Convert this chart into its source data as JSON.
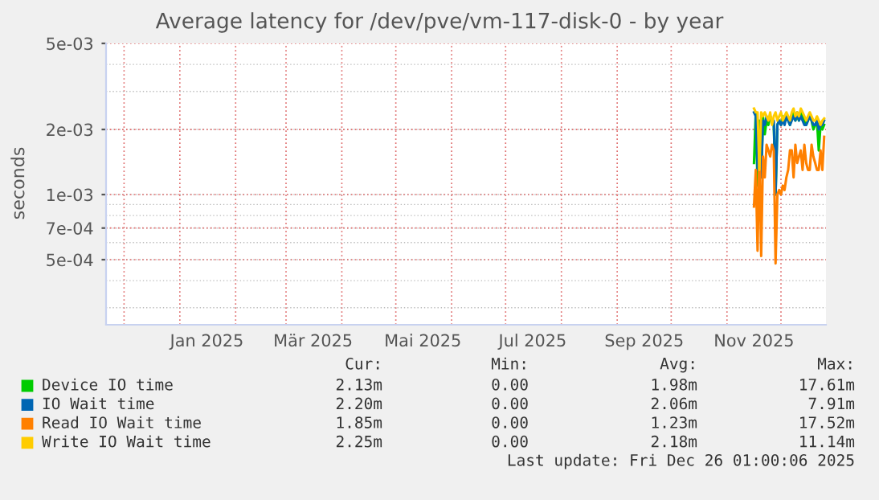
{
  "chart_data": {
    "type": "line",
    "title": "Average latency for /dev/pve/vm-117-disk-0 - by year",
    "ylabel": "seconds",
    "x": [
      "2025-11-16",
      "2025-11-17",
      "2025-11-18",
      "2025-11-19",
      "2025-11-20",
      "2025-11-21",
      "2025-11-22",
      "2025-11-23",
      "2025-11-24",
      "2025-11-25",
      "2025-11-26",
      "2025-11-27",
      "2025-11-28",
      "2025-11-29",
      "2025-11-30",
      "2025-12-01",
      "2025-12-02",
      "2025-12-03",
      "2025-12-04",
      "2025-12-05",
      "2025-12-06",
      "2025-12-07",
      "2025-12-08",
      "2025-12-09",
      "2025-12-10",
      "2025-12-11",
      "2025-12-12",
      "2025-12-13",
      "2025-12-14",
      "2025-12-15",
      "2025-12-16",
      "2025-12-17",
      "2025-12-18",
      "2025-12-19",
      "2025-12-20",
      "2025-12-21",
      "2025-12-22",
      "2025-12-23",
      "2025-12-24",
      "2025-12-25"
    ],
    "series": [
      {
        "name": "Device IO time",
        "color": "#00cc00",
        "values": [
          0.0014,
          0.0024,
          0.0011,
          0.0022,
          0.0012,
          0.0023,
          0.0019,
          0.0022,
          0.0021,
          0.0023,
          0.0022,
          0.0021,
          0.001,
          0.0021,
          0.0022,
          0.0021,
          0.0023,
          0.0022,
          0.0023,
          0.0022,
          0.0021,
          0.0023,
          0.0024,
          0.0022,
          0.0023,
          0.0022,
          0.0024,
          0.0023,
          0.0022,
          0.0021,
          0.0022,
          0.0023,
          0.0022,
          0.002,
          0.0021,
          0.0022,
          0.0016,
          0.0021,
          0.002,
          0.0021
        ]
      },
      {
        "name": "IO Wait time",
        "color": "#0066b3",
        "values": [
          0.0024,
          0.0023,
          0.0013,
          0.002,
          0.0012,
          0.0022,
          0.0021,
          0.0023,
          0.0022,
          0.0023,
          0.0022,
          0.0022,
          0.001,
          0.0021,
          0.0022,
          0.0021,
          0.0022,
          0.0021,
          0.0023,
          0.0022,
          0.0021,
          0.0022,
          0.0023,
          0.0022,
          0.0024,
          0.0022,
          0.0023,
          0.0022,
          0.0021,
          0.0021,
          0.0022,
          0.0023,
          0.0022,
          0.0021,
          0.0021,
          0.0022,
          0.002,
          0.0021,
          0.0021,
          0.0022
        ]
      },
      {
        "name": "Read IO Wait time",
        "color": "#ff8000",
        "values": [
          0.00088,
          0.0013,
          0.00055,
          0.0016,
          0.00052,
          0.0015,
          0.0012,
          0.0017,
          0.0016,
          0.0015,
          0.0017,
          0.0016,
          0.00048,
          0.001,
          0.00105,
          0.001,
          0.0011,
          0.00105,
          0.0012,
          0.0013,
          0.0016,
          0.0016,
          0.0012,
          0.0017,
          0.0014,
          0.0015,
          0.0016,
          0.0013,
          0.0017,
          0.0014,
          0.0013,
          0.0013,
          0.0017,
          0.0015,
          0.0014,
          0.0013,
          0.0013,
          0.0016,
          0.0013,
          0.00185
        ]
      },
      {
        "name": "Write IO Wait time",
        "color": "#ffcc00",
        "values": [
          0.0025,
          0.0024,
          0.0024,
          0.0013,
          0.0024,
          0.0023,
          0.0024,
          0.0023,
          0.0022,
          0.0024,
          0.0021,
          0.0023,
          0.0024,
          0.0022,
          0.0023,
          0.0024,
          0.0022,
          0.0023,
          0.0024,
          0.0023,
          0.0022,
          0.0024,
          0.0025,
          0.0023,
          0.0024,
          0.0023,
          0.0025,
          0.0024,
          0.0023,
          0.0022,
          0.0023,
          0.0024,
          0.0023,
          0.0022,
          0.0022,
          0.0023,
          0.0022,
          0.0021,
          0.0022,
          0.00225
        ]
      }
    ],
    "xlim": [
      "2024-11-21",
      "2025-12-26"
    ],
    "xticks": [
      {
        "value": "2024-12-01",
        "label": null
      },
      {
        "value": "2025-01-01",
        "label": null
      },
      {
        "value": "2025-01-16",
        "label": "Jan 2025"
      },
      {
        "value": "2025-02-01",
        "label": null
      },
      {
        "value": "2025-03-01",
        "label": null
      },
      {
        "value": "2025-03-16",
        "label": "Mär 2025"
      },
      {
        "value": "2025-04-01",
        "label": null
      },
      {
        "value": "2025-05-01",
        "label": null
      },
      {
        "value": "2025-05-16",
        "label": "Mai 2025"
      },
      {
        "value": "2025-06-01",
        "label": null
      },
      {
        "value": "2025-07-01",
        "label": null
      },
      {
        "value": "2025-07-16",
        "label": "Jul 2025"
      },
      {
        "value": "2025-08-01",
        "label": null
      },
      {
        "value": "2025-09-01",
        "label": null
      },
      {
        "value": "2025-09-16",
        "label": "Sep 2025"
      },
      {
        "value": "2025-10-01",
        "label": null
      },
      {
        "value": "2025-11-01",
        "label": null
      },
      {
        "value": "2025-11-16",
        "label": "Nov 2025"
      },
      {
        "value": "2025-12-01",
        "label": null
      }
    ],
    "ylim": [
      0.00025,
      0.005
    ],
    "yticks": [
      {
        "value": 0.0005,
        "label": "5e-04"
      },
      {
        "value": 0.0007,
        "label": "7e-04"
      },
      {
        "value": 0.001,
        "label": "1e-03"
      },
      {
        "value": 0.002,
        "label": "2e-03"
      },
      {
        "value": 0.005,
        "label": "5e-03"
      }
    ],
    "log": "y",
    "grid": true,
    "legend": "bottom",
    "marker": "none",
    "line_style": "solid",
    "annotations": [
      "Cur:",
      "Min:",
      "Avg:",
      "Max:",
      "2.13m",
      "0.00",
      "1.98m",
      "17.61m",
      "2.20m",
      "0.00",
      "2.06m",
      "7.91m",
      "1.85m",
      "0.00",
      "1.23m",
      "17.52m",
      "2.25m",
      "0.00",
      "2.18m",
      "11.14m",
      "Last update: Fri Dec 26 01:00:06 2025"
    ]
  }
}
